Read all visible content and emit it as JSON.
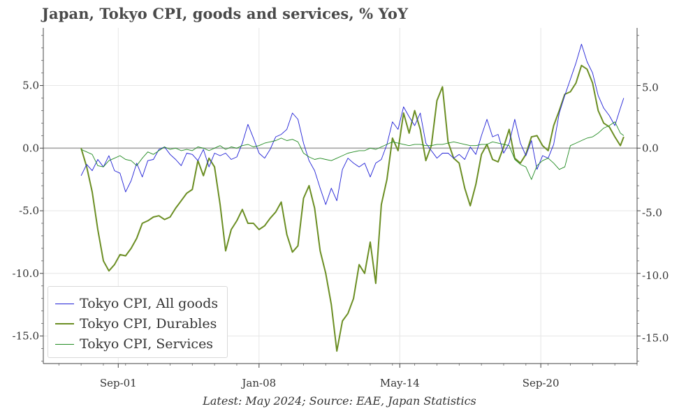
{
  "chart_data": {
    "type": "line",
    "title": "Japan, Tokyo CPI, goods and services, % YoY",
    "footnote": "Latest: May 2024; Source: EAE, Japan Statistics",
    "x_tick_labels": [
      "Sep-01",
      "Jan-08",
      "May-14",
      "Sep-20"
    ],
    "x_tick_dates": [
      2001.67,
      2008.0,
      2014.33,
      2020.67
    ],
    "xlim": [
      1998.3,
      2025.0
    ],
    "y_ticks": [
      5.0,
      0.0,
      -5.0,
      -10.0,
      -15.0
    ],
    "y_tick_labels": [
      "5.0",
      "0.0",
      "-5.0",
      "-10.0",
      "-15.0"
    ],
    "ylim": [
      -17.2,
      9.6
    ],
    "grid": true,
    "legend_position": "bottom-left",
    "series": [
      {
        "name": "Tokyo CPI, All goods",
        "color": "#1f1fd6",
        "width": 0.9,
        "points": [
          [
            2000.0,
            -2.2
          ],
          [
            2000.25,
            -1.3
          ],
          [
            2000.5,
            -1.8
          ],
          [
            2000.75,
            -0.9
          ],
          [
            2001.0,
            -1.5
          ],
          [
            2001.25,
            -0.6
          ],
          [
            2001.5,
            -1.8
          ],
          [
            2001.75,
            -2.0
          ],
          [
            2002.0,
            -3.5
          ],
          [
            2002.25,
            -2.6
          ],
          [
            2002.5,
            -1.2
          ],
          [
            2002.75,
            -2.3
          ],
          [
            2003.0,
            -1.0
          ],
          [
            2003.25,
            -0.9
          ],
          [
            2003.5,
            -0.1
          ],
          [
            2003.75,
            0.1
          ],
          [
            2004.0,
            -0.5
          ],
          [
            2004.25,
            -0.9
          ],
          [
            2004.5,
            -1.4
          ],
          [
            2004.75,
            -0.4
          ],
          [
            2005.0,
            -0.5
          ],
          [
            2005.25,
            -1.0
          ],
          [
            2005.5,
            -0.1
          ],
          [
            2005.75,
            -1.5
          ],
          [
            2006.0,
            -0.4
          ],
          [
            2006.25,
            -0.6
          ],
          [
            2006.5,
            -0.4
          ],
          [
            2006.75,
            -0.9
          ],
          [
            2007.0,
            -0.7
          ],
          [
            2007.25,
            0.4
          ],
          [
            2007.5,
            1.9
          ],
          [
            2007.75,
            0.8
          ],
          [
            2008.0,
            -0.4
          ],
          [
            2008.25,
            -0.8
          ],
          [
            2008.5,
            -0.1
          ],
          [
            2008.75,
            0.9
          ],
          [
            2009.0,
            1.1
          ],
          [
            2009.25,
            1.5
          ],
          [
            2009.5,
            2.8
          ],
          [
            2009.75,
            2.3
          ],
          [
            2010.0,
            0.4
          ],
          [
            2010.25,
            -1.0
          ],
          [
            2010.5,
            -1.8
          ],
          [
            2010.75,
            -3.2
          ],
          [
            2011.0,
            -4.5
          ],
          [
            2011.25,
            -3.2
          ],
          [
            2011.5,
            -4.2
          ],
          [
            2011.75,
            -1.7
          ],
          [
            2012.0,
            -0.8
          ],
          [
            2012.25,
            -1.2
          ],
          [
            2012.5,
            -1.5
          ],
          [
            2012.75,
            -1.2
          ],
          [
            2013.0,
            -2.3
          ],
          [
            2013.25,
            -1.2
          ],
          [
            2013.5,
            -0.9
          ],
          [
            2013.75,
            0.3
          ],
          [
            2014.0,
            2.1
          ],
          [
            2014.25,
            1.5
          ],
          [
            2014.5,
            3.3
          ],
          [
            2014.75,
            2.5
          ],
          [
            2015.0,
            1.8
          ],
          [
            2015.25,
            2.8
          ],
          [
            2015.5,
            0.4
          ],
          [
            2015.75,
            -0.2
          ],
          [
            2016.0,
            -0.8
          ],
          [
            2016.25,
            -0.4
          ],
          [
            2016.5,
            -0.4
          ],
          [
            2016.75,
            -0.8
          ],
          [
            2017.0,
            -0.5
          ],
          [
            2017.25,
            -0.9
          ],
          [
            2017.5,
            0.1
          ],
          [
            2017.75,
            -0.5
          ],
          [
            2018.0,
            1.0
          ],
          [
            2018.25,
            2.3
          ],
          [
            2018.5,
            0.9
          ],
          [
            2018.75,
            1.1
          ],
          [
            2019.0,
            -0.4
          ],
          [
            2019.25,
            0.4
          ],
          [
            2019.5,
            2.3
          ],
          [
            2019.75,
            0.4
          ],
          [
            2020.0,
            -0.6
          ],
          [
            2020.25,
            0.6
          ],
          [
            2020.5,
            -1.7
          ],
          [
            2020.75,
            -0.6
          ],
          [
            2021.0,
            -0.8
          ],
          [
            2021.25,
            0.3
          ],
          [
            2021.5,
            2.8
          ],
          [
            2021.75,
            4.2
          ],
          [
            2022.0,
            5.5
          ],
          [
            2022.25,
            6.8
          ],
          [
            2022.5,
            8.3
          ],
          [
            2022.75,
            6.9
          ],
          [
            2023.0,
            6.0
          ],
          [
            2023.25,
            4.2
          ],
          [
            2023.5,
            3.2
          ],
          [
            2023.75,
            2.6
          ],
          [
            2024.0,
            1.8
          ],
          [
            2024.25,
            3.2
          ],
          [
            2024.4,
            4.0
          ]
        ]
      },
      {
        "name": "Tokyo CPI, Durables",
        "color": "#6b8e23",
        "width": 2.0,
        "points": [
          [
            2000.0,
            0.0
          ],
          [
            2000.25,
            -1.5
          ],
          [
            2000.5,
            -3.5
          ],
          [
            2000.75,
            -6.5
          ],
          [
            2001.0,
            -9.0
          ],
          [
            2001.25,
            -9.8
          ],
          [
            2001.5,
            -9.3
          ],
          [
            2001.75,
            -8.5
          ],
          [
            2002.0,
            -8.6
          ],
          [
            2002.25,
            -8.0
          ],
          [
            2002.5,
            -7.2
          ],
          [
            2002.75,
            -6.0
          ],
          [
            2003.0,
            -5.8
          ],
          [
            2003.25,
            -5.5
          ],
          [
            2003.5,
            -5.4
          ],
          [
            2003.75,
            -5.7
          ],
          [
            2004.0,
            -5.5
          ],
          [
            2004.25,
            -4.8
          ],
          [
            2004.5,
            -4.2
          ],
          [
            2004.75,
            -3.6
          ],
          [
            2005.0,
            -3.3
          ],
          [
            2005.25,
            -1.0
          ],
          [
            2005.5,
            -2.2
          ],
          [
            2005.75,
            -0.8
          ],
          [
            2006.0,
            -1.5
          ],
          [
            2006.25,
            -4.5
          ],
          [
            2006.5,
            -8.2
          ],
          [
            2006.75,
            -6.5
          ],
          [
            2007.0,
            -5.8
          ],
          [
            2007.25,
            -4.9
          ],
          [
            2007.5,
            -6.0
          ],
          [
            2007.75,
            -6.0
          ],
          [
            2008.0,
            -6.5
          ],
          [
            2008.25,
            -6.2
          ],
          [
            2008.5,
            -5.6
          ],
          [
            2008.75,
            -5.1
          ],
          [
            2009.0,
            -4.3
          ],
          [
            2009.25,
            -6.9
          ],
          [
            2009.5,
            -8.3
          ],
          [
            2009.75,
            -7.8
          ],
          [
            2010.0,
            -4.0
          ],
          [
            2010.25,
            -3.0
          ],
          [
            2010.5,
            -4.8
          ],
          [
            2010.75,
            -8.2
          ],
          [
            2011.0,
            -10.0
          ],
          [
            2011.25,
            -12.5
          ],
          [
            2011.5,
            -16.2
          ],
          [
            2011.75,
            -13.8
          ],
          [
            2012.0,
            -13.2
          ],
          [
            2012.25,
            -12.0
          ],
          [
            2012.5,
            -9.3
          ],
          [
            2012.75,
            -10.0
          ],
          [
            2013.0,
            -7.5
          ],
          [
            2013.25,
            -10.8
          ],
          [
            2013.5,
            -4.5
          ],
          [
            2013.75,
            -2.5
          ],
          [
            2014.0,
            0.8
          ],
          [
            2014.25,
            -0.2
          ],
          [
            2014.5,
            2.8
          ],
          [
            2014.75,
            1.2
          ],
          [
            2015.0,
            3.0
          ],
          [
            2015.25,
            1.5
          ],
          [
            2015.5,
            -1.0
          ],
          [
            2015.75,
            0.2
          ],
          [
            2016.0,
            3.8
          ],
          [
            2016.25,
            4.9
          ],
          [
            2016.5,
            0.5
          ],
          [
            2016.75,
            -0.8
          ],
          [
            2017.0,
            -1.2
          ],
          [
            2017.25,
            -3.2
          ],
          [
            2017.5,
            -4.6
          ],
          [
            2017.75,
            -2.9
          ],
          [
            2018.0,
            -0.5
          ],
          [
            2018.25,
            0.3
          ],
          [
            2018.5,
            -0.9
          ],
          [
            2018.75,
            -1.1
          ],
          [
            2019.0,
            0.1
          ],
          [
            2019.25,
            1.5
          ],
          [
            2019.5,
            -0.8
          ],
          [
            2019.75,
            -1.2
          ],
          [
            2020.0,
            -0.5
          ],
          [
            2020.25,
            0.9
          ],
          [
            2020.5,
            1.0
          ],
          [
            2020.75,
            0.2
          ],
          [
            2021.0,
            -0.2
          ],
          [
            2021.25,
            1.8
          ],
          [
            2021.5,
            3.0
          ],
          [
            2021.75,
            4.3
          ],
          [
            2022.0,
            4.5
          ],
          [
            2022.25,
            5.2
          ],
          [
            2022.5,
            6.6
          ],
          [
            2022.75,
            6.3
          ],
          [
            2023.0,
            5.2
          ],
          [
            2023.25,
            3.0
          ],
          [
            2023.5,
            2.0
          ],
          [
            2023.75,
            1.7
          ],
          [
            2024.0,
            0.9
          ],
          [
            2024.25,
            0.2
          ],
          [
            2024.4,
            0.9
          ]
        ]
      },
      {
        "name": "Tokyo CPI, Services",
        "color": "#228b22",
        "width": 0.9,
        "points": [
          [
            2000.0,
            -0.1
          ],
          [
            2000.25,
            -0.3
          ],
          [
            2000.5,
            -0.5
          ],
          [
            2000.75,
            -1.4
          ],
          [
            2001.0,
            -1.5
          ],
          [
            2001.25,
            -1.0
          ],
          [
            2001.5,
            -0.8
          ],
          [
            2001.75,
            -0.6
          ],
          [
            2002.0,
            -0.9
          ],
          [
            2002.25,
            -1.0
          ],
          [
            2002.5,
            -1.4
          ],
          [
            2002.75,
            -0.8
          ],
          [
            2003.0,
            -0.3
          ],
          [
            2003.25,
            -0.5
          ],
          [
            2003.5,
            -0.2
          ],
          [
            2003.75,
            0.1
          ],
          [
            2004.0,
            -0.1
          ],
          [
            2004.25,
            0.0
          ],
          [
            2004.5,
            -0.2
          ],
          [
            2004.75,
            -0.1
          ],
          [
            2005.0,
            -0.2
          ],
          [
            2005.25,
            0.1
          ],
          [
            2005.5,
            0.0
          ],
          [
            2005.75,
            -0.2
          ],
          [
            2006.0,
            0.0
          ],
          [
            2006.25,
            0.2
          ],
          [
            2006.5,
            -0.1
          ],
          [
            2006.75,
            0.1
          ],
          [
            2007.0,
            0.0
          ],
          [
            2007.25,
            0.2
          ],
          [
            2007.5,
            0.3
          ],
          [
            2007.75,
            0.1
          ],
          [
            2008.0,
            0.2
          ],
          [
            2008.25,
            0.4
          ],
          [
            2008.5,
            0.5
          ],
          [
            2008.75,
            0.6
          ],
          [
            2009.0,
            0.8
          ],
          [
            2009.25,
            0.6
          ],
          [
            2009.5,
            0.7
          ],
          [
            2009.75,
            0.5
          ],
          [
            2010.0,
            -0.4
          ],
          [
            2010.25,
            -0.7
          ],
          [
            2010.5,
            -0.9
          ],
          [
            2010.75,
            -0.8
          ],
          [
            2011.0,
            -0.9
          ],
          [
            2011.25,
            -1.0
          ],
          [
            2011.5,
            -0.8
          ],
          [
            2011.75,
            -0.6
          ],
          [
            2012.0,
            -0.4
          ],
          [
            2012.25,
            -0.3
          ],
          [
            2012.5,
            -0.2
          ],
          [
            2012.75,
            -0.2
          ],
          [
            2013.0,
            0.0
          ],
          [
            2013.25,
            -0.1
          ],
          [
            2013.5,
            0.1
          ],
          [
            2013.75,
            0.3
          ],
          [
            2014.0,
            0.5
          ],
          [
            2014.25,
            0.4
          ],
          [
            2014.5,
            0.3
          ],
          [
            2014.75,
            0.2
          ],
          [
            2015.0,
            0.3
          ],
          [
            2015.25,
            0.3
          ],
          [
            2015.5,
            0.2
          ],
          [
            2015.75,
            0.2
          ],
          [
            2016.0,
            0.3
          ],
          [
            2016.25,
            0.3
          ],
          [
            2016.5,
            0.4
          ],
          [
            2016.75,
            0.5
          ],
          [
            2017.0,
            0.4
          ],
          [
            2017.25,
            0.3
          ],
          [
            2017.5,
            0.2
          ],
          [
            2017.75,
            0.2
          ],
          [
            2018.0,
            0.3
          ],
          [
            2018.25,
            0.3
          ],
          [
            2018.5,
            0.5
          ],
          [
            2018.75,
            0.4
          ],
          [
            2019.0,
            0.3
          ],
          [
            2019.25,
            0.2
          ],
          [
            2019.5,
            -0.9
          ],
          [
            2019.75,
            -1.3
          ],
          [
            2020.0,
            -1.5
          ],
          [
            2020.25,
            -2.5
          ],
          [
            2020.5,
            -1.4
          ],
          [
            2020.75,
            -1.0
          ],
          [
            2021.0,
            -0.8
          ],
          [
            2021.25,
            -1.2
          ],
          [
            2021.5,
            -1.7
          ],
          [
            2021.75,
            -1.5
          ],
          [
            2022.0,
            0.2
          ],
          [
            2022.25,
            0.4
          ],
          [
            2022.5,
            0.6
          ],
          [
            2022.75,
            0.8
          ],
          [
            2023.0,
            0.9
          ],
          [
            2023.25,
            1.2
          ],
          [
            2023.5,
            1.6
          ],
          [
            2023.75,
            1.8
          ],
          [
            2024.0,
            2.1
          ],
          [
            2024.25,
            1.2
          ],
          [
            2024.4,
            1.0
          ]
        ]
      }
    ]
  }
}
